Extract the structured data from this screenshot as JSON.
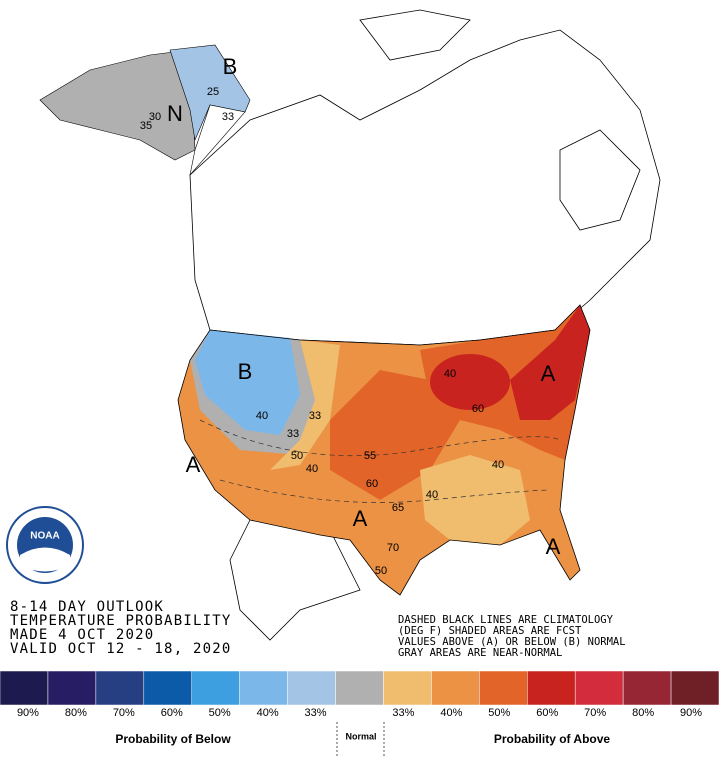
{
  "map": {
    "region_letters": [
      "B",
      "N",
      "B",
      "A",
      "A",
      "A",
      "A"
    ],
    "contour_labels": [
      25,
      30,
      35,
      33,
      40,
      33,
      33,
      50,
      40,
      55,
      60,
      65,
      70,
      50,
      60,
      40,
      40,
      40
    ],
    "logo": "NOAA"
  },
  "title_block": [
    "8-14 DAY OUTLOOK",
    "TEMPERATURE PROBABILITY",
    "MADE  4 OCT 2020",
    "VALID  OCT 12 - 18, 2020"
  ],
  "notes": [
    "DASHED BLACK LINES ARE CLIMATOLOGY",
    "(DEG F) SHADED AREAS ARE FCST",
    "VALUES ABOVE (A) OR BELOW (B) NORMAL",
    "GRAY AREAS ARE NEAR-NORMAL"
  ],
  "legend": {
    "colors": [
      "#1c1a4e",
      "#261d64",
      "#263f82",
      "#0b5ba8",
      "#3d9fe0",
      "#7cb7ea",
      "#a4c4e6",
      "#b0b0b0",
      "#f0bc6e",
      "#ec9245",
      "#e26428",
      "#c8231f",
      "#d22c3d",
      "#962634",
      "#6f1f26"
    ],
    "labels": [
      "90%",
      "80%",
      "70%",
      "60%",
      "50%",
      "40%",
      "33%",
      "33%",
      "40%",
      "50%",
      "60%",
      "70%",
      "80%",
      "90%"
    ],
    "below_title": "Probability of Below",
    "normal_title": "Normal",
    "above_title": "Probability of Above"
  }
}
